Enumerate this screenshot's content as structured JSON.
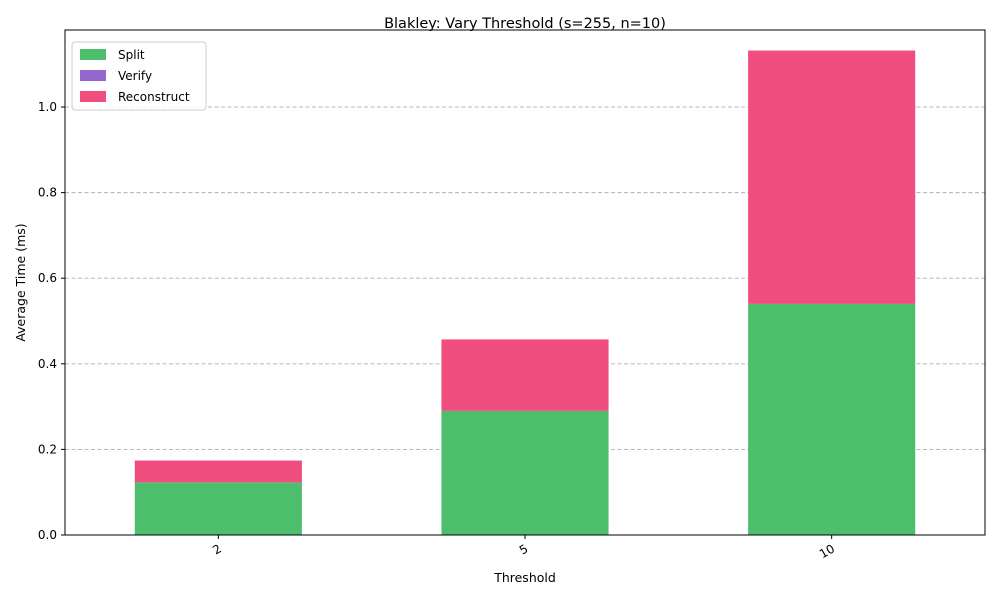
{
  "chart_data": {
    "type": "bar",
    "stacked": true,
    "title": "Blakley: Vary Threshold (s=255, n=10)",
    "xlabel": "Threshold",
    "ylabel": "Average Time (ms)",
    "categories": [
      "2",
      "5",
      "10"
    ],
    "ylim": [
      0,
      1.18
    ],
    "yticks": [
      "0.0",
      "0.2",
      "0.4",
      "0.6",
      "0.8",
      "1.0"
    ],
    "grid": "y-dashed",
    "legend_position": "top-left",
    "series": [
      {
        "name": "Split",
        "color": "#4dbe6c",
        "values": [
          0.123,
          0.29,
          0.54
        ]
      },
      {
        "name": "Verify",
        "color": "#9467cc",
        "values": [
          0.0,
          0.0,
          0.0
        ]
      },
      {
        "name": "Reconstruct",
        "color": "#f04e7f",
        "values": [
          0.051,
          0.167,
          0.592
        ]
      }
    ]
  }
}
